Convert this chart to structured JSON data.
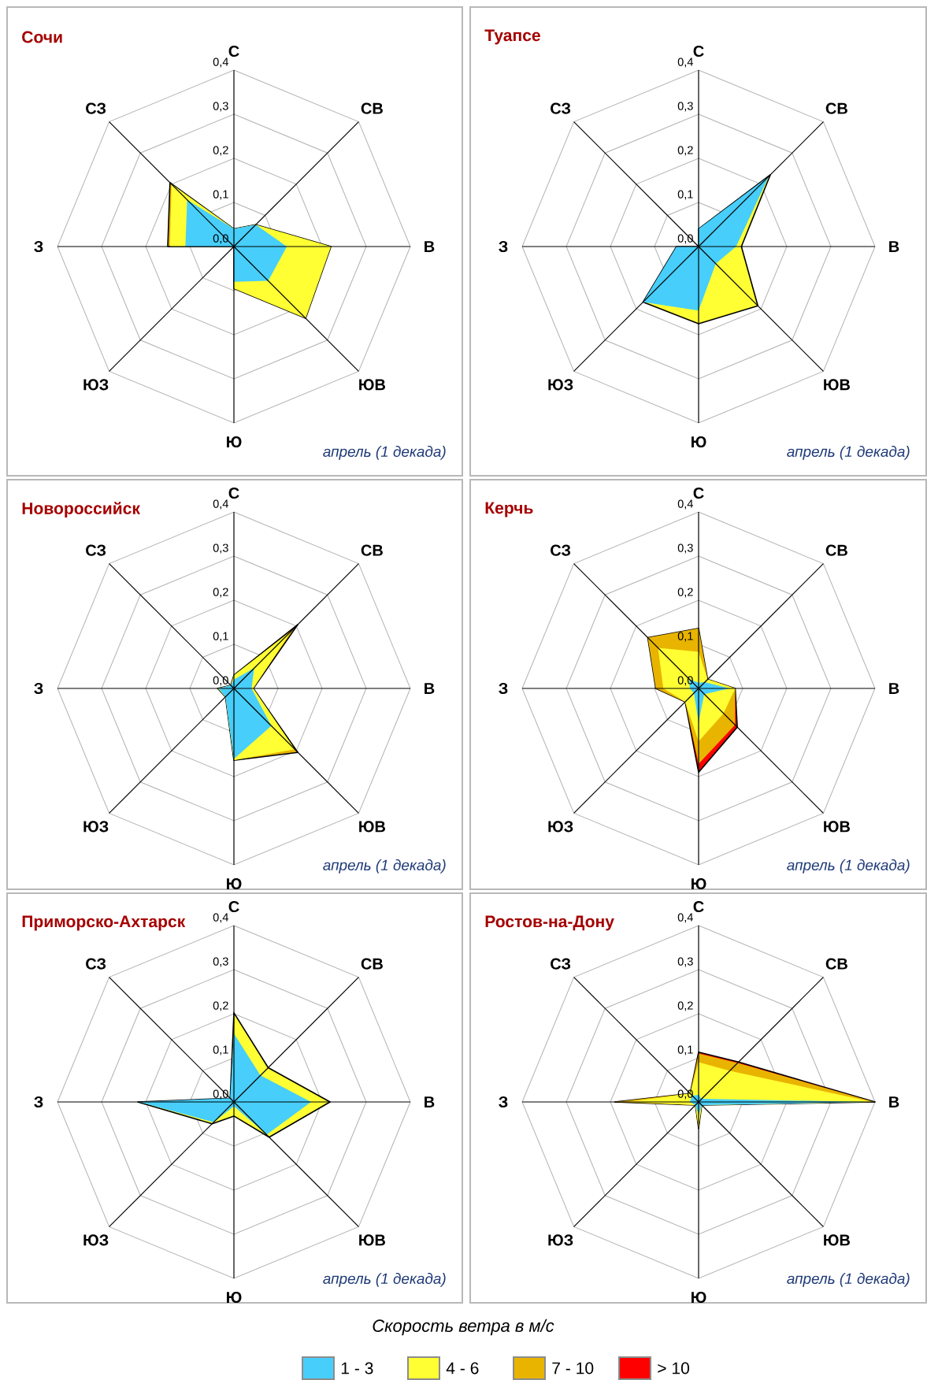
{
  "chart_data": [
    {
      "type": "radar",
      "title": "Сочи",
      "annotations": [
        "апрель (1 декада)"
      ],
      "categories": [
        "С",
        "СВ",
        "В",
        "ЮВ",
        "Ю",
        "ЮЗ",
        "З",
        "СЗ"
      ],
      "grid": true,
      "ylim": [
        0,
        0.4
      ],
      "yticks": [
        {
          "value": 0,
          "label": "0,0"
        },
        {
          "value": 0.1,
          "label": "0,1"
        },
        {
          "value": 0.2,
          "label": "0,2"
        },
        {
          "value": 0.3,
          "label": "0,3"
        },
        {
          "value": 0.4,
          "label": "0,4"
        }
      ],
      "series": [
        {
          "color": "#47CEFA",
          "values": [
            0.04,
            0.07,
            0.12,
            0.11,
            0.08,
            0,
            0.11,
            0.15
          ]
        },
        {
          "color": "#FFFF33",
          "values": [
            0.04,
            0.07,
            0.22,
            0.23,
            0.095,
            0,
            0.145,
            0.2
          ]
        },
        {
          "color": "#E8B400",
          "values": [
            0.04,
            0.07,
            0.22,
            0.23,
            0.095,
            0,
            0.15,
            0.205
          ]
        }
      ]
    },
    {
      "type": "radar",
      "title": "Туапсе",
      "annotations": [
        "апрель (1 декада)"
      ],
      "categories": [
        "С",
        "СВ",
        "В",
        "ЮВ",
        "Ю",
        "ЮЗ",
        "З",
        "СЗ"
      ],
      "grid": true,
      "ylim": [
        0,
        0.4
      ],
      "yticks": [
        {
          "value": 0,
          "label": "0,0"
        },
        {
          "value": 0.1,
          "label": "0,1"
        },
        {
          "value": 0.2,
          "label": "0,2"
        },
        {
          "value": 0.3,
          "label": "0,3"
        },
        {
          "value": 0.4,
          "label": "0,4"
        }
      ],
      "series": [
        {
          "color": "#47CEFA",
          "values": [
            0.04,
            0.225,
            0.085,
            0.055,
            0.145,
            0.178,
            0.05,
            0
          ]
        },
        {
          "color": "#FFFF33",
          "values": [
            0.04,
            0.23,
            0.097,
            0.19,
            0.175,
            0.178,
            0.05,
            0
          ]
        }
      ]
    },
    {
      "type": "radar",
      "title": "Новороссийск",
      "annotations": [
        "апрель (1 декада)"
      ],
      "categories": [
        "С",
        "СВ",
        "В",
        "ЮВ",
        "Ю",
        "ЮЗ",
        "З",
        "СЗ"
      ],
      "grid": true,
      "ylim": [
        0,
        0.4
      ],
      "yticks": [
        {
          "value": 0,
          "label": "0,0"
        },
        {
          "value": 0.1,
          "label": "0,1"
        },
        {
          "value": 0.2,
          "label": "0,2"
        },
        {
          "value": 0.3,
          "label": "0,3"
        },
        {
          "value": 0.4,
          "label": "0,4"
        }
      ],
      "series": [
        {
          "color": "#47CEFA",
          "values": [
            0.02,
            0.065,
            0.04,
            0.12,
            0.16,
            0.027,
            0.035,
            0.01
          ]
        },
        {
          "color": "#FFFF33",
          "values": [
            0.03,
            0.185,
            0.044,
            0.195,
            0.163,
            0.027,
            0.037,
            0.01
          ]
        },
        {
          "color": "#E8B400",
          "values": [
            0.03,
            0.205,
            0.044,
            0.205,
            0.163,
            0.027,
            0.037,
            0.01
          ]
        }
      ]
    },
    {
      "type": "radar",
      "title": "Керчь",
      "annotations": [
        "апрель (1 декада)"
      ],
      "categories": [
        "С",
        "СВ",
        "В",
        "ЮВ",
        "Ю",
        "ЮЗ",
        "З",
        "СЗ"
      ],
      "grid": true,
      "ylim": [
        0,
        0.4
      ],
      "yticks": [
        {
          "value": 0,
          "label": "0,0"
        },
        {
          "value": 0.1,
          "label": "0,1"
        },
        {
          "value": 0.2,
          "label": "0,2"
        },
        {
          "value": 0.3,
          "label": "0,3"
        },
        {
          "value": 0.4,
          "label": "0,4"
        }
      ],
      "series": [
        {
          "color": "#47CEFA",
          "values": [
            0.013,
            0.02,
            0.07,
            0.018,
            0.077,
            0.015,
            0.02,
            0.03
          ]
        },
        {
          "color": "#FFFF33",
          "values": [
            0.083,
            0.029,
            0.083,
            0.08,
            0.12,
            0.043,
            0.08,
            0.13
          ]
        },
        {
          "color": "#E8B400",
          "values": [
            0.136,
            0.029,
            0.083,
            0.117,
            0.171,
            0.043,
            0.097,
            0.163
          ]
        },
        {
          "color": "#FF0000",
          "values": [
            0.136,
            0.029,
            0.083,
            0.124,
            0.19,
            0.043,
            0.097,
            0.163
          ]
        }
      ]
    },
    {
      "type": "radar",
      "title": "Приморско-Ахтарск",
      "annotations": [
        "апрель (1 декада)"
      ],
      "categories": [
        "С",
        "СВ",
        "В",
        "ЮВ",
        "Ю",
        "ЮЗ",
        "З",
        "СЗ"
      ],
      "grid": true,
      "ylim": [
        0,
        0.4
      ],
      "yticks": [
        {
          "value": 0,
          "label": "0,0"
        },
        {
          "value": 0.1,
          "label": "0,1"
        },
        {
          "value": 0.2,
          "label": "0,2"
        },
        {
          "value": 0.3,
          "label": "0,3"
        },
        {
          "value": 0.4,
          "label": "0,4"
        }
      ],
      "series": [
        {
          "color": "#47CEFA",
          "values": [
            0.155,
            0.085,
            0.175,
            0.105,
            0.01,
            0.065,
            0.215,
            0.012
          ]
        },
        {
          "color": "#FFFF33",
          "values": [
            0.202,
            0.11,
            0.218,
            0.113,
            0.032,
            0.07,
            0.218,
            0.012
          ]
        }
      ]
    },
    {
      "type": "radar",
      "title": "Ростов-на-Дону",
      "annotations": [
        "апрель (1 декада)"
      ],
      "categories": [
        "С",
        "СВ",
        "В",
        "ЮВ",
        "Ю",
        "ЮЗ",
        "З",
        "СЗ"
      ],
      "grid": true,
      "ylim": [
        0,
        0.4
      ],
      "yticks": [
        {
          "value": 0,
          "label": "0,0"
        },
        {
          "value": 0.1,
          "label": "0,1"
        },
        {
          "value": 0.2,
          "label": "0,2"
        },
        {
          "value": 0.3,
          "label": "0,3"
        },
        {
          "value": 0.4,
          "label": "0,4"
        }
      ],
      "legend": "bottom",
      "legend_title": "Скорость ветра в м/с",
      "series": [
        {
          "name": "1 - 3",
          "color": "#47CEFA",
          "values": [
            0.016,
            0.01,
            0.39,
            0.01,
            0.03,
            0.01,
            0.02,
            0.02
          ]
        },
        {
          "name": "4 - 6",
          "color": "#FFFF33",
          "values": [
            0.09,
            0.1,
            0.395,
            0.01,
            0.06,
            0.01,
            0.16,
            0.027
          ]
        },
        {
          "name": "7 - 10",
          "color": "#E8B400",
          "values": [
            0.11,
            0.125,
            0.398,
            0.01,
            0.06,
            0.01,
            0.19,
            0.027
          ]
        },
        {
          "name": "> 10",
          "color": "#FF0000",
          "values": [
            0.113,
            0.128,
            0.4,
            0.01,
            0.06,
            0.01,
            0.19,
            0.027
          ]
        }
      ]
    }
  ]
}
